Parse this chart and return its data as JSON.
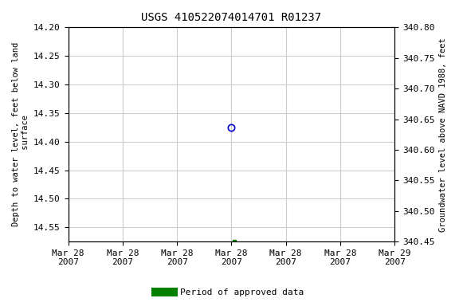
{
  "title": "USGS 410522074014701 R01237",
  "ylabel_left": "Depth to water level, feet below land\n surface",
  "ylabel_right": "Groundwater level above NAVD 1988, feet",
  "ylim_left_top": 14.2,
  "ylim_left_bottom": 14.575,
  "ylim_right_top": 340.8,
  "ylim_right_bottom": 340.45,
  "yticks_left": [
    14.2,
    14.25,
    14.3,
    14.35,
    14.4,
    14.45,
    14.5,
    14.55
  ],
  "yticks_right": [
    340.8,
    340.75,
    340.7,
    340.65,
    340.6,
    340.55,
    340.5,
    340.45
  ],
  "xlim": [
    0,
    6
  ],
  "xtick_positions": [
    0,
    1,
    2,
    3,
    4,
    5,
    6
  ],
  "xtick_labels": [
    "Mar 28\n2007",
    "Mar 28\n2007",
    "Mar 28\n2007",
    "Mar 28\n2007",
    "Mar 28\n2007",
    "Mar 28\n2007",
    "Mar 29\n2007"
  ],
  "point_blue_x": 3.0,
  "point_blue_y": 14.375,
  "point_green_x": 3.05,
  "point_green_y": 14.575,
  "blue_color": "#0000cc",
  "green_color": "#008000",
  "bg_color": "#ffffff",
  "grid_color": "#cccccc",
  "legend_label": "Period of approved data",
  "font_family": "monospace",
  "title_fontsize": 10,
  "tick_fontsize": 8,
  "label_fontsize": 7.5
}
